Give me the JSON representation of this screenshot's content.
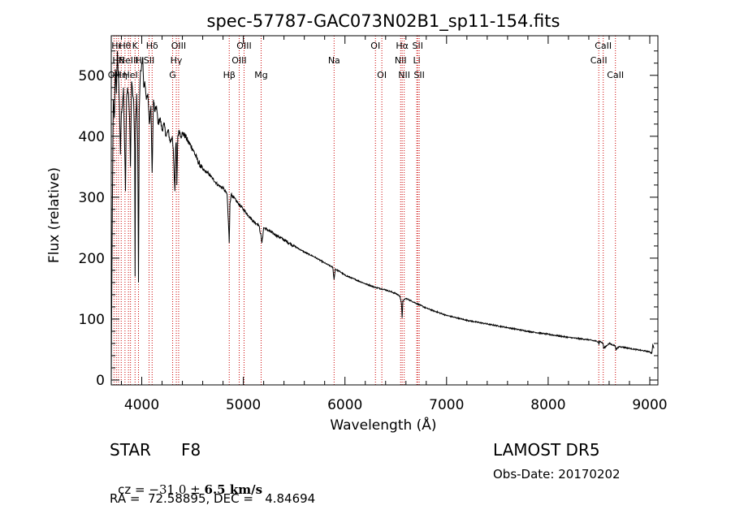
{
  "chart_data": {
    "type": "line",
    "title": "spec-57787-GAC073N02B1_sp11-154.fits",
    "xlabel": "Wavelength (Å)",
    "ylabel": "Flux (relative)",
    "xlim": [
      3700,
      9080
    ],
    "ylim": [
      -8,
      565
    ],
    "xticks": [
      4000,
      5000,
      6000,
      7000,
      8000,
      9000
    ],
    "yticks": [
      0,
      100,
      200,
      300,
      400,
      500
    ],
    "grid": false,
    "series": [
      {
        "color": "#000000",
        "x": [
          3700,
          3710,
          3720,
          3730,
          3740,
          3750,
          3760,
          3770,
          3780,
          3790,
          3800,
          3810,
          3820,
          3830,
          3840,
          3850,
          3860,
          3870,
          3880,
          3889,
          3900,
          3910,
          3920,
          3930,
          3934,
          3940,
          3950,
          3960,
          3968,
          3975,
          3985,
          4000,
          4010,
          4020,
          4030,
          4045,
          4060,
          4075,
          4090,
          4102,
          4115,
          4130,
          4145,
          4160,
          4180,
          4200,
          4220,
          4240,
          4260,
          4280,
          4300,
          4310,
          4320,
          4326,
          4333,
          4340,
          4345,
          4355,
          4370,
          4385,
          4400,
          4430,
          4460,
          4500,
          4550,
          4600,
          4650,
          4700,
          4750,
          4800,
          4840,
          4855,
          4861,
          4868,
          4880,
          4900,
          4950,
          5000,
          5050,
          5100,
          5150,
          5170,
          5183,
          5200,
          5250,
          5300,
          5400,
          5500,
          5600,
          5700,
          5800,
          5880,
          5893,
          5905,
          5950,
          6000,
          6100,
          6200,
          6300,
          6400,
          6500,
          6540,
          6556,
          6563,
          6570,
          6600,
          6700,
          6800,
          6900,
          7000,
          7200,
          7400,
          7600,
          7800,
          8000,
          8200,
          8400,
          8495,
          8500,
          8505,
          8540,
          8542,
          8546,
          8600,
          8660,
          8662,
          8666,
          8700,
          8800,
          8900,
          8980,
          9000,
          9020,
          9030,
          9040
        ],
        "values": [
          0,
          280,
          460,
          430,
          510,
          470,
          540,
          500,
          455,
          370,
          440,
          450,
          480,
          390,
          310,
          460,
          480,
          470,
          430,
          350,
          490,
          470,
          460,
          380,
          170,
          420,
          470,
          390,
          160,
          440,
          500,
          520,
          530,
          480,
          490,
          460,
          470,
          420,
          450,
          340,
          460,
          440,
          450,
          420,
          430,
          410,
          420,
          400,
          410,
          390,
          400,
          380,
          330,
          310,
          380,
          390,
          320,
          400,
          410,
          400,
          405,
          400,
          390,
          380,
          360,
          345,
          340,
          330,
          320,
          315,
          305,
          250,
          225,
          290,
          305,
          300,
          290,
          280,
          270,
          260,
          255,
          240,
          225,
          250,
          245,
          240,
          230,
          220,
          210,
          202,
          192,
          185,
          165,
          182,
          178,
          172,
          165,
          158,
          152,
          148,
          142,
          138,
          125,
          102,
          130,
          134,
          126,
          118,
          112,
          106,
          98,
          92,
          86,
          80,
          75,
          70,
          66,
          63,
          58,
          64,
          60,
          58,
          52,
          60,
          56,
          55,
          50,
          55,
          52,
          49,
          47,
          46,
          44,
          58,
          52
        ]
      }
    ],
    "line_markers": [
      {
        "wavelength": 3727,
        "label": "OII",
        "row": 2
      },
      {
        "wavelength": 3750,
        "label": "Hι",
        "row": 0
      },
      {
        "wavelength": 3771,
        "label": "Hθ",
        "row": 1
      },
      {
        "wavelength": 3798,
        "label": "Hη",
        "row": 2
      },
      {
        "wavelength": 3835,
        "label": "Hθ",
        "row": 0
      },
      {
        "wavelength": 3869,
        "label": "NeIII",
        "row": 1
      },
      {
        "wavelength": 3889,
        "label": "HeI",
        "row": 2
      },
      {
        "wavelength": 3934,
        "label": "K",
        "row": 0
      },
      {
        "wavelength": 3968,
        "label": "H",
        "row": 1
      },
      {
        "wavelength": 4072,
        "label": "SII",
        "row": 1
      },
      {
        "wavelength": 4102,
        "label": "Hδ",
        "row": 0
      },
      {
        "wavelength": 4304,
        "label": "G",
        "row": 2
      },
      {
        "wavelength": 4340,
        "label": "Hγ",
        "row": 1
      },
      {
        "wavelength": 4363,
        "label": "OIII",
        "row": 0
      },
      {
        "wavelength": 4861,
        "label": "Hβ",
        "row": 2
      },
      {
        "wavelength": 4959,
        "label": "OIII",
        "row": 1
      },
      {
        "wavelength": 5007,
        "label": "OIII",
        "row": 0
      },
      {
        "wavelength": 5175,
        "label": "Mg",
        "row": 2
      },
      {
        "wavelength": 5893,
        "label": "Na",
        "row": 1
      },
      {
        "wavelength": 6300,
        "label": "OI",
        "row": 0
      },
      {
        "wavelength": 6363,
        "label": "OI",
        "row": 2
      },
      {
        "wavelength": 6548,
        "label": "NII",
        "row": 1
      },
      {
        "wavelength": 6563,
        "label": "Hα",
        "row": 0
      },
      {
        "wavelength": 6583,
        "label": "NII",
        "row": 2
      },
      {
        "wavelength": 6707,
        "label": "Li",
        "row": 1
      },
      {
        "wavelength": 6716,
        "label": "SII",
        "row": 0
      },
      {
        "wavelength": 6731,
        "label": "SII",
        "row": 2
      },
      {
        "wavelength": 8498,
        "label": "CaII",
        "row": 1
      },
      {
        "wavelength": 8542,
        "label": "CaII",
        "row": 0
      },
      {
        "wavelength": 8662,
        "label": "CaII",
        "row": 2
      }
    ]
  },
  "info": {
    "class": "STAR",
    "subclass": "F8",
    "survey": "LAMOST DR5",
    "cz_prefix": "cz = ",
    "cz_value": "−31.0",
    "cz_pm": "±",
    "cz_err": "6.5 km/s",
    "obs_date": "Obs-Date: 20170202",
    "radec": "RA =  72.58895, DEC =   4.84694"
  }
}
